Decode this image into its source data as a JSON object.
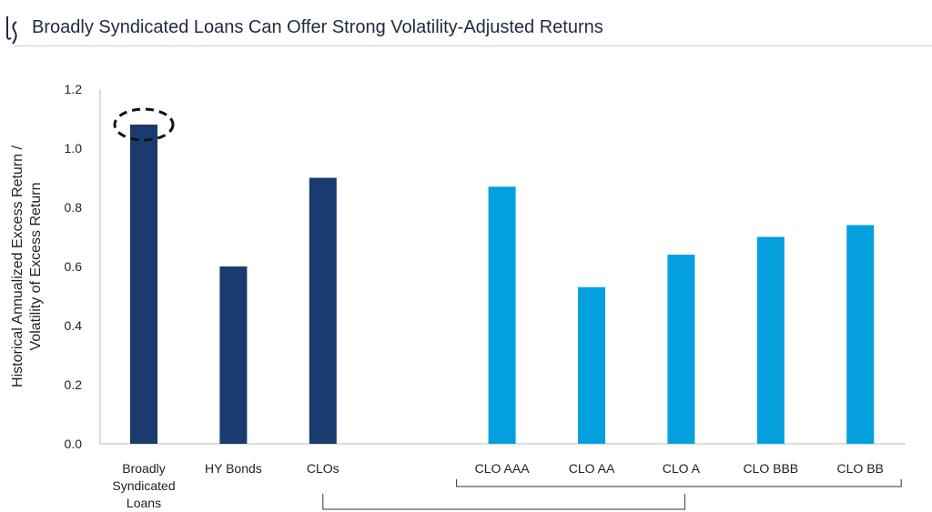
{
  "header": {
    "title": "Broadly Syndicated Loans Can Offer Strong Volatility-Adjusted Returns",
    "logo_text": "LS"
  },
  "chart_data": {
    "type": "bar",
    "title": "Broadly Syndicated Loans Can Offer Strong Volatility-Adjusted Returns",
    "ylabel": [
      "Historical Annualized Excess Return /",
      "Volatility of Excess Return"
    ],
    "xlabel": "",
    "ylim": [
      0,
      1.2
    ],
    "yticks": [
      "0.0",
      "0.2",
      "0.4",
      "0.6",
      "0.8",
      "1.0",
      "1.2"
    ],
    "categories": [
      {
        "label": [
          "Broadly",
          "Syndicated",
          "Loans"
        ],
        "value": 1.08,
        "color": "#1b3a6e",
        "highlighted": true
      },
      {
        "label": [
          "HY Bonds"
        ],
        "value": 0.6,
        "color": "#1b3a6e"
      },
      {
        "label": [
          "CLOs"
        ],
        "value": 0.9,
        "color": "#1b3a6e"
      },
      {
        "label": [
          ""
        ],
        "value": null,
        "color": null
      },
      {
        "label": [
          "CLO AAA"
        ],
        "value": 0.87,
        "color": "#049fdf"
      },
      {
        "label": [
          "CLO AA"
        ],
        "value": 0.53,
        "color": "#049fdf"
      },
      {
        "label": [
          "CLO A"
        ],
        "value": 0.64,
        "color": "#049fdf"
      },
      {
        "label": [
          "CLO BBB"
        ],
        "value": 0.7,
        "color": "#049fdf"
      },
      {
        "label": [
          "CLO BB"
        ],
        "value": 0.74,
        "color": "#049fdf"
      }
    ],
    "grid": false,
    "annotations": [
      "dashed ellipse highlighting Broadly Syndicated Loans bar",
      "bracket grouping CLO AAA to CLO BB",
      "bracket linking CLOs to CLO A"
    ]
  }
}
